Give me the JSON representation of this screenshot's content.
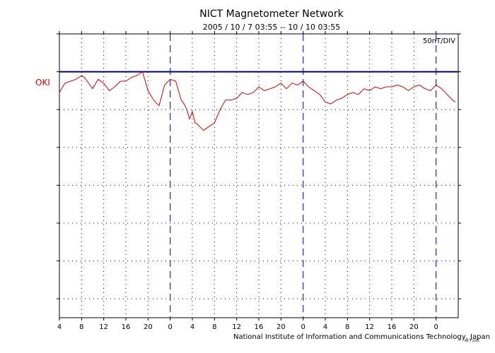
{
  "title": "NICT Magnetometer Network",
  "subtitle": "2005 / 10 / 7   03:55 -- 10 / 10   03:55",
  "scale_label": "50nT/DIV",
  "station": "OKI",
  "credit": "National Institute of Information and Communications Technology, Japan",
  "tiny_mark": "NICT 2005",
  "colors": {
    "trace": "#cc0000",
    "baseline": "#000080",
    "day_divider": "#2222cc",
    "station_label": "#cc0000"
  },
  "chart_data": {
    "type": "line",
    "title": "NICT Magnetometer Network",
    "subtitle": "2005 / 10 / 7   03:55 -- 10 / 10   03:55",
    "xlabel": "",
    "ylabel": "",
    "xlim": [
      4,
      76
    ],
    "ylim": [
      -6.5,
      1
    ],
    "x_tick_labels": [
      "4",
      "8",
      "12",
      "16",
      "20",
      "0",
      "4",
      "8",
      "12",
      "16",
      "20",
      "0",
      "4",
      "8",
      "12",
      "16",
      "20",
      "0"
    ],
    "x_tick_values": [
      4,
      8,
      12,
      16,
      20,
      24,
      28,
      32,
      36,
      40,
      44,
      48,
      52,
      56,
      60,
      64,
      68,
      72
    ],
    "day_dividers": [
      24,
      48,
      72
    ],
    "y_scale": "50nT/DIV",
    "grid": true,
    "baseline_y": 0,
    "series": [
      {
        "name": "OKI",
        "x": [
          4,
          5,
          6,
          7,
          8,
          8.5,
          9,
          10,
          11,
          12,
          13,
          14,
          15,
          16,
          17,
          18,
          19,
          19.5,
          20,
          21,
          22,
          23,
          24,
          25,
          26,
          26.5,
          27,
          27.5,
          28,
          28.5,
          29,
          30,
          31,
          32,
          33,
          34,
          35,
          36,
          37,
          38,
          39,
          40,
          41,
          42,
          43,
          44,
          45,
          46,
          47,
          48,
          49,
          50,
          51,
          52,
          53,
          54,
          55,
          56,
          57,
          58,
          59,
          60,
          61,
          62,
          63,
          64,
          65,
          66,
          67,
          68,
          69,
          70,
          71,
          72,
          73,
          74,
          75,
          75.5
        ],
        "y": [
          -0.55,
          -0.3,
          -0.25,
          -0.2,
          -0.1,
          -0.15,
          -0.25,
          -0.45,
          -0.2,
          -0.3,
          -0.5,
          -0.4,
          -0.25,
          -0.25,
          -0.15,
          -0.1,
          0,
          -0.25,
          -0.5,
          -0.75,
          -0.9,
          -0.35,
          -0.2,
          -0.25,
          -0.75,
          -0.85,
          -1.0,
          -1.25,
          -1.05,
          -1.35,
          -1.4,
          -1.55,
          -1.45,
          -1.35,
          -1.0,
          -0.75,
          -0.75,
          -0.7,
          -0.55,
          -0.6,
          -0.55,
          -0.4,
          -0.5,
          -0.45,
          -0.4,
          -0.3,
          -0.45,
          -0.3,
          -0.35,
          -0.25,
          -0.4,
          -0.5,
          -0.6,
          -0.8,
          -0.85,
          -0.75,
          -0.7,
          -0.6,
          -0.55,
          -0.6,
          -0.45,
          -0.5,
          -0.4,
          -0.45,
          -0.4,
          -0.4,
          -0.35,
          -0.4,
          -0.5,
          -0.4,
          -0.35,
          -0.45,
          -0.5,
          -0.35,
          -0.45,
          -0.6,
          -0.75,
          -0.8
        ]
      }
    ]
  }
}
